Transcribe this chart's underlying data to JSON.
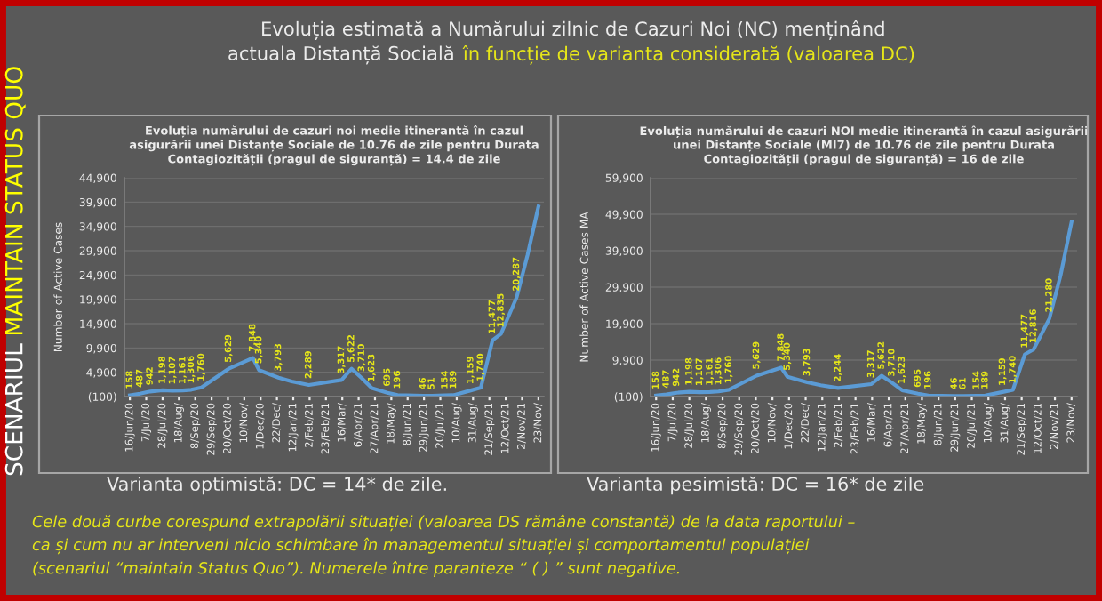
{
  "chart_data": [
    {
      "type": "line",
      "title": "Evoluția numărului de cazuri noi medie itinerantă în cazul asigurării unei Distanțe Sociale de 10.76 de zile pentru Durata Contagiozității (pragul de siguranță) = 14.4 de zile",
      "ylabel": "Number of Active Cases",
      "x": [
        "2020-06-16",
        "2020-06-29",
        "2020-07-12",
        "2020-07-28",
        "2020-08-10",
        "2020-08-23",
        "2020-09-03",
        "2020-09-16",
        "2020-10-21",
        "2020-11-21",
        "2020-11-29",
        "2020-12-24",
        "2021-01-10",
        "2021-02-01",
        "2021-03-15",
        "2021-03-28",
        "2021-04-10",
        "2021-04-23",
        "2021-05-13",
        "2021-05-26",
        "2021-06-28",
        "2021-07-09",
        "2021-07-26",
        "2021-08-06",
        "2021-08-28",
        "2021-09-10",
        "2021-09-25",
        "2021-10-06",
        "2021-10-26",
        "2021-11-09",
        "2021-11-23"
      ],
      "series": [
        {
          "color": "#5b9bd5",
          "values": [
            158,
            487,
            942,
            1198,
            1107,
            1161,
            1306,
            1760,
            5629,
            7848,
            5340,
            3793,
            3000,
            2289,
            3317,
            5622,
            3710,
            1623,
            695,
            196,
            46,
            51,
            154,
            189,
            1159,
            1740,
            11477,
            12835,
            20287,
            29000,
            39000
          ],
          "value_labels": [
            "158",
            "487",
            "942",
            "1,198",
            "1,107",
            "1,161",
            "1,306",
            "1,760",
            "5,629",
            "7,848",
            "5,340",
            "3,793",
            null,
            "2,289",
            "3,317",
            "5,622",
            "3,710",
            "1,623",
            "695",
            "196",
            "46",
            "51",
            "154",
            "189",
            "1,159",
            "1,740",
            "11,477",
            "12,835",
            "20,287",
            null,
            null
          ]
        }
      ],
      "xlim": [
        "2020-06-09",
        "2021-11-30"
      ],
      "xticks": [
        {
          "value": "2020-06-16",
          "label": "16/Jun/20"
        },
        {
          "value": "2020-07-07",
          "label": "7/Jul/20"
        },
        {
          "value": "2020-07-28",
          "label": "28/Jul/20"
        },
        {
          "value": "2020-08-18",
          "label": "18/Aug/"
        },
        {
          "value": "2020-09-08",
          "label": "8/Sep/20"
        },
        {
          "value": "2020-09-29",
          "label": "29/Sep/20"
        },
        {
          "value": "2020-10-20",
          "label": "20/Oct/20"
        },
        {
          "value": "2020-11-10",
          "label": "10/Nov/"
        },
        {
          "value": "2020-12-01",
          "label": "1/Dec/20"
        },
        {
          "value": "2020-12-22",
          "label": "22/Dec/"
        },
        {
          "value": "2021-01-12",
          "label": "12/Jan/21"
        },
        {
          "value": "2021-02-02",
          "label": "2/Feb/21"
        },
        {
          "value": "2021-02-23",
          "label": "23/Feb/21"
        },
        {
          "value": "2021-03-16",
          "label": "16/Mar/"
        },
        {
          "value": "2021-04-06",
          "label": "6/Apr/21"
        },
        {
          "value": "2021-04-27",
          "label": "27/Apr/21"
        },
        {
          "value": "2021-05-18",
          "label": "18/May/"
        },
        {
          "value": "2021-06-08",
          "label": "8/Jun/21"
        },
        {
          "value": "2021-06-29",
          "label": "29/Jun/21"
        },
        {
          "value": "2021-07-20",
          "label": "20/Jul/21"
        },
        {
          "value": "2021-08-10",
          "label": "10/Aug/"
        },
        {
          "value": "2021-08-31",
          "label": "31/Aug/"
        },
        {
          "value": "2021-09-21",
          "label": "21/Sep/21"
        },
        {
          "value": "2021-10-12",
          "label": "12/Oct/21"
        },
        {
          "value": "2021-11-02",
          "label": "2/Nov/21"
        },
        {
          "value": "2021-11-23",
          "label": "23/Nov/"
        }
      ],
      "ylim": [
        -100,
        44900
      ],
      "yticks": [
        {
          "value": -100,
          "label": "(100)"
        },
        {
          "value": 4900,
          "label": "4,900"
        },
        {
          "value": 9900,
          "label": "9,900"
        },
        {
          "value": 14900,
          "label": "14,900"
        },
        {
          "value": 19900,
          "label": "19,900"
        },
        {
          "value": 24900,
          "label": "24,900"
        },
        {
          "value": 29900,
          "label": "29,900"
        },
        {
          "value": 34900,
          "label": "34,900"
        },
        {
          "value": 39900,
          "label": "39,900"
        },
        {
          "value": 44900,
          "label": "44,900"
        }
      ],
      "grid": "y",
      "annotations": [
        "Varianta optimistă: DC = 14* de zile.",
        "Evoluția estimată a Numărului zilnic de Cazuri Noi (NC) menținând",
        "actuala Distanță Socială",
        "în funcție de varianta considerată (valoarea DC)",
        "Cele două curbe corespund extrapolării situației (valoarea DS rămâne constantă) de la data raportului –",
        "ca și cum nu ar interveni nicio schimbare în managementul situației și comportamentul populației",
        "(scenariul “maintain Status Quo”). Numerele între paranteze “ ( ) ” sunt negative.",
        "SCENARIUL",
        "MAINTAIN STATUS QUO"
      ]
    },
    {
      "type": "line",
      "title": "Evoluția numărului de cazuri NOI medie itinerantă în cazul asigurării unei Distanțe Sociale (MI7) de 10.76 de zile pentru Durata Contagiozității (pragul de siguranță) = 16 de zile",
      "ylabel": "Number of Active Cases MA",
      "x": [
        "2020-06-16",
        "2020-06-29",
        "2020-07-12",
        "2020-07-28",
        "2020-08-10",
        "2020-08-23",
        "2020-09-03",
        "2020-09-16",
        "2020-10-21",
        "2020-11-21",
        "2020-11-29",
        "2020-12-24",
        "2021-01-10",
        "2021-02-01",
        "2021-03-15",
        "2021-03-28",
        "2021-04-10",
        "2021-04-23",
        "2021-05-13",
        "2021-05-26",
        "2021-06-28",
        "2021-07-09",
        "2021-07-26",
        "2021-08-06",
        "2021-08-28",
        "2021-09-10",
        "2021-09-25",
        "2021-10-06",
        "2021-10-26",
        "2021-11-09",
        "2021-11-23"
      ],
      "series": [
        {
          "color": "#5b9bd5",
          "values": [
            158,
            487,
            942,
            1198,
            1107,
            1161,
            1306,
            1760,
            5629,
            7848,
            5340,
            3793,
            3000,
            2244,
            3317,
            5622,
            3710,
            1623,
            695,
            196,
            46,
            61,
            154,
            189,
            1159,
            1740,
            11477,
            12816,
            21280,
            33000,
            47800
          ],
          "value_labels": [
            "158",
            "487",
            "942",
            "1,198",
            "1,107",
            "1,161",
            "1,306",
            "1,760",
            "5,629",
            "7,848",
            "5,340",
            "3,793",
            null,
            "2,244",
            "3,317",
            "5,622",
            "3,710",
            "1,623",
            "695",
            "196",
            "46",
            "61",
            "154",
            "189",
            "1,159",
            "1,740",
            "11,477",
            "12,816",
            "21,280",
            null,
            null
          ]
        }
      ],
      "xlim": [
        "2020-06-09",
        "2021-11-30"
      ],
      "xticks": [
        {
          "value": "2020-06-16",
          "label": "16/Jun/20"
        },
        {
          "value": "2020-07-07",
          "label": "7/Jul/20"
        },
        {
          "value": "2020-07-28",
          "label": "28/Jul/20"
        },
        {
          "value": "2020-08-18",
          "label": "18/Aug/"
        },
        {
          "value": "2020-09-08",
          "label": "8/Sep/20"
        },
        {
          "value": "2020-09-29",
          "label": "29/Sep/20"
        },
        {
          "value": "2020-10-20",
          "label": "20/Oct/20"
        },
        {
          "value": "2020-11-10",
          "label": "10/Nov/"
        },
        {
          "value": "2020-12-01",
          "label": "1/Dec/20"
        },
        {
          "value": "2020-12-22",
          "label": "22/Dec/"
        },
        {
          "value": "2021-01-12",
          "label": "12/Jan/21"
        },
        {
          "value": "2021-02-02",
          "label": "2/Feb/21"
        },
        {
          "value": "2021-02-23",
          "label": "23/Feb/21"
        },
        {
          "value": "2021-03-16",
          "label": "16/Mar/"
        },
        {
          "value": "2021-04-06",
          "label": "6/Apr/21"
        },
        {
          "value": "2021-04-27",
          "label": "27/Apr/21"
        },
        {
          "value": "2021-05-18",
          "label": "18/May/"
        },
        {
          "value": "2021-06-08",
          "label": "8/Jun/21"
        },
        {
          "value": "2021-06-29",
          "label": "29/Jun/21"
        },
        {
          "value": "2021-07-20",
          "label": "20/Jul/21"
        },
        {
          "value": "2021-08-10",
          "label": "10/Aug/"
        },
        {
          "value": "2021-08-31",
          "label": "31/Aug/"
        },
        {
          "value": "2021-09-21",
          "label": "21/Sep/21"
        },
        {
          "value": "2021-10-12",
          "label": "12/Oct/21"
        },
        {
          "value": "2021-11-02",
          "label": "2/Nov/21"
        },
        {
          "value": "2021-11-23",
          "label": "23/Nov/"
        }
      ],
      "ylim": [
        -100,
        59900
      ],
      "yticks": [
        {
          "value": -100,
          "label": "(100)"
        },
        {
          "value": 9900,
          "label": "9,900"
        },
        {
          "value": 19900,
          "label": "19,900"
        },
        {
          "value": 29900,
          "label": "29,900"
        },
        {
          "value": 39900,
          "label": "39,900"
        },
        {
          "value": 49900,
          "label": "49,900"
        },
        {
          "value": 59900,
          "label": "59,900"
        }
      ],
      "grid": "y",
      "annotations": [
        "Varianta pesimistă: DC = 16* de zile"
      ]
    }
  ]
}
